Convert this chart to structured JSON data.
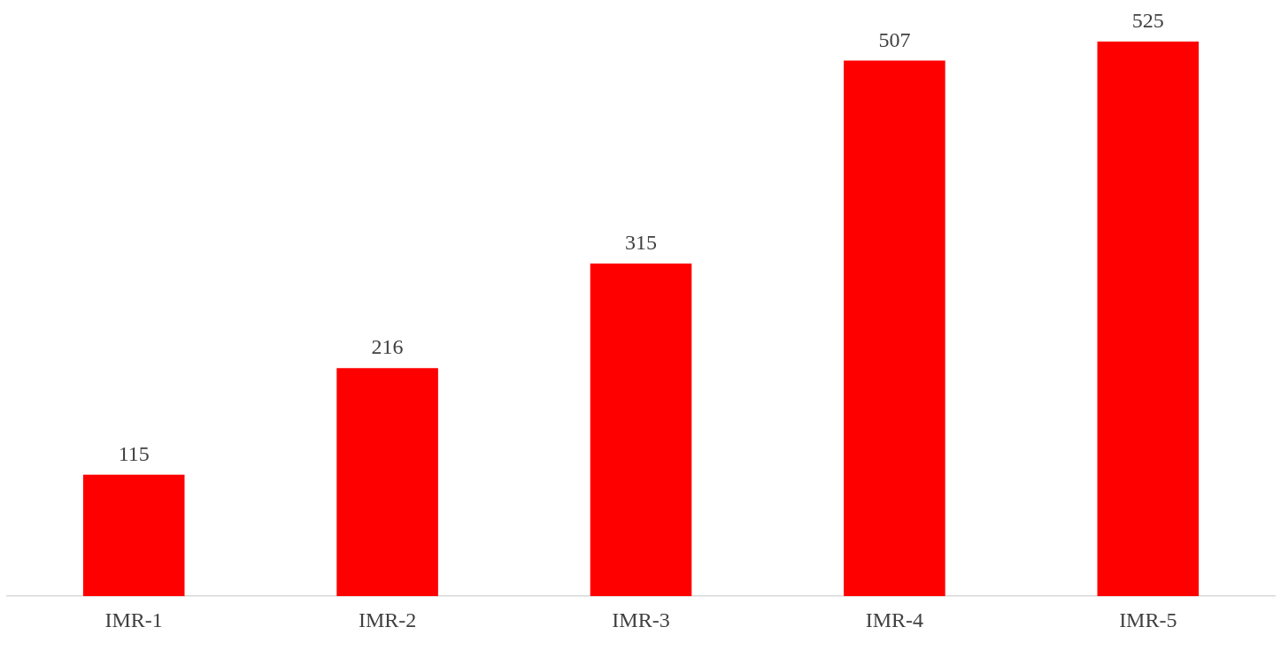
{
  "chart_data": {
    "type": "bar",
    "categories": [
      "IMR-1",
      "IMR-2",
      "IMR-3",
      "IMR-4",
      "IMR-5"
    ],
    "values": [
      115,
      216,
      315,
      507,
      525
    ],
    "color": "#ff0000",
    "data_labels": true,
    "grid": false,
    "legend": false
  }
}
